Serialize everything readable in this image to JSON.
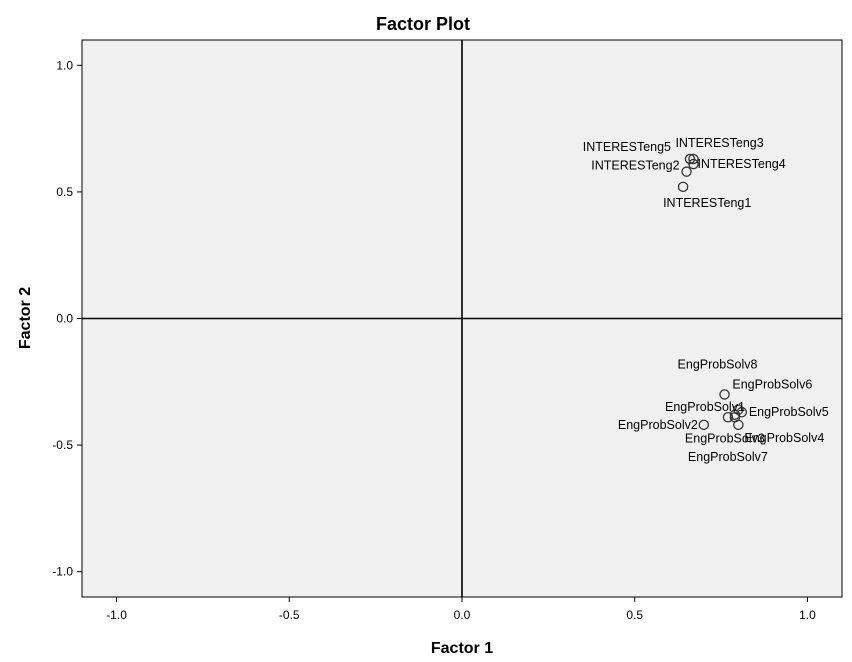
{
  "chart_data": {
    "type": "scatter",
    "title": "Factor Plot",
    "xlabel": "Factor 1",
    "ylabel": "Factor 2",
    "xlim": [
      -1.1,
      1.1
    ],
    "ylim": [
      -1.1,
      1.1
    ],
    "xticks": [
      "-1.0",
      "-0.5",
      "0.0",
      "0.5",
      "1.0"
    ],
    "yticks": [
      "1.0",
      "0.5",
      "0.0",
      "-0.5",
      "-1.0"
    ],
    "grid": false,
    "points": [
      {
        "label": "INTERESTeng1",
        "x": 0.64,
        "y": 0.52
      },
      {
        "label": "INTERESTeng2",
        "x": 0.65,
        "y": 0.58
      },
      {
        "label": "INTERESTeng3",
        "x": 0.67,
        "y": 0.63
      },
      {
        "label": "INTERESTeng4",
        "x": 0.67,
        "y": 0.61
      },
      {
        "label": "INTERESTeng5",
        "x": 0.66,
        "y": 0.63
      },
      {
        "label": "EngProbSolv1",
        "x": 0.77,
        "y": -0.39
      },
      {
        "label": "EngProbSolv2",
        "x": 0.7,
        "y": -0.42
      },
      {
        "label": "EngProbSolv3",
        "x": 0.79,
        "y": -0.38
      },
      {
        "label": "EngProbSolv4",
        "x": 0.8,
        "y": -0.42
      },
      {
        "label": "EngProbSolv5",
        "x": 0.81,
        "y": -0.37
      },
      {
        "label": "EngProbSolv6",
        "x": 0.8,
        "y": -0.36
      },
      {
        "label": "EngProbSolv7",
        "x": 0.79,
        "y": -0.39
      },
      {
        "label": "EngProbSolv8",
        "x": 0.76,
        "y": -0.3
      }
    ]
  }
}
